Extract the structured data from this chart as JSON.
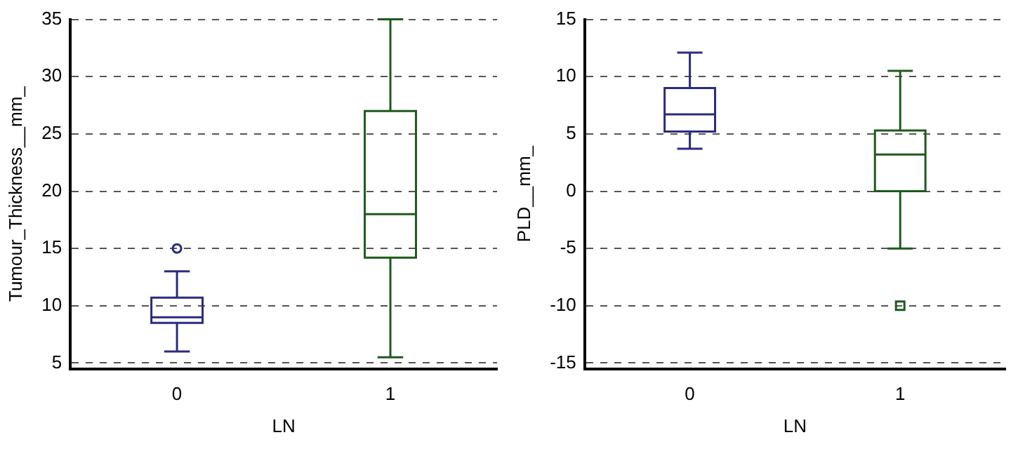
{
  "chart_data": [
    {
      "type": "box",
      "xlabel": "LN",
      "ylabel": "Tumour_Thickness__mm_",
      "categories": [
        "0",
        "1"
      ],
      "colors": [
        "#2b2b80",
        "#1e5a1e"
      ],
      "marker": "circle",
      "grid": "y",
      "ylim": [
        4.5,
        35
      ],
      "yticks": [
        5,
        10,
        15,
        20,
        25,
        30,
        35
      ],
      "boxes": [
        {
          "low": 6,
          "q1": 8.5,
          "median": 9,
          "q3": 10.7,
          "high": 13,
          "outliers": [
            15
          ]
        },
        {
          "low": 5.5,
          "q1": 14.2,
          "median": 18,
          "q3": 27,
          "high": 35
        }
      ]
    },
    {
      "type": "box",
      "xlabel": "LN",
      "ylabel": "PLD__mm_",
      "categories": [
        "0",
        "1"
      ],
      "colors": [
        "#2b2b80",
        "#1e5a1e"
      ],
      "marker": "square",
      "grid": "y",
      "ylim": [
        -15.5,
        15
      ],
      "yticks": [
        -15,
        -10,
        -5,
        0,
        5,
        10,
        15
      ],
      "boxes": [
        {
          "low": 3.7,
          "q1": 5.2,
          "median": 6.7,
          "q3": 9,
          "high": 12.1
        },
        {
          "low": -5,
          "q1": 0,
          "median": 3.2,
          "q3": 5.3,
          "high": 10.5,
          "outliers": [
            -10
          ]
        }
      ]
    }
  ]
}
